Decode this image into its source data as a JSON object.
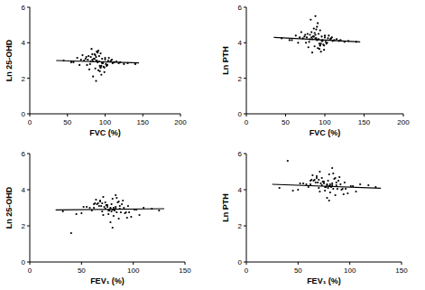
{
  "chart_data": [
    {
      "type": "scatter",
      "x_label": "FVC (%)",
      "y_label": "Ln 25-OHD",
      "xlim": [
        0,
        200
      ],
      "ylim": [
        0,
        6
      ],
      "xticks": [
        0,
        50,
        100,
        150,
        200
      ],
      "yticks": [
        0,
        2,
        4,
        6
      ],
      "series": [
        {
          "type": "scatter",
          "color": "#000000",
          "marker": "circle",
          "x": [
            92,
            85,
            101,
            78,
            95,
            88,
            110,
            70,
            99,
            83,
            90,
            105,
            76,
            94,
            87,
            115,
            81,
            97,
            68,
            102,
            89,
            93,
            120,
            74,
            86,
            98,
            108,
            80,
            91,
            84,
            63,
            96,
            100,
            79,
            112,
            88,
            95,
            72,
            103,
            90,
            58,
            125,
            86,
            94,
            82,
            107,
            77,
            99,
            92,
            130,
            66,
            89,
            97,
            84,
            104,
            75,
            93,
            87,
            118,
            81,
            45,
            100,
            91,
            96,
            140,
            55,
            88,
            109,
            83,
            94
          ],
          "values": [
            2.95,
            3.1,
            2.8,
            3.25,
            2.7,
            3.0,
            2.85,
            3.3,
            2.6,
            3.05,
            2.9,
            3.15,
            2.75,
            3.4,
            2.55,
            2.95,
            3.2,
            2.85,
            3.05,
            2.7,
            3.0,
            2.4,
            2.9,
            3.1,
            3.35,
            2.65,
            3.0,
            2.8,
            3.55,
            2.95,
            3.15,
            2.85,
            3.05,
            2.5,
            2.9,
            3.2,
            2.2,
            3.0,
            2.75,
            3.45,
            2.9,
            2.8,
            3.1,
            2.6,
            3.65,
            2.95,
            3.05,
            2.35,
            3.25,
            2.85,
            2.75,
            3.5,
            2.9,
            2.1,
            3.0,
            3.2,
            2.7,
            3.3,
            2.85,
            2.95,
            3.0,
            3.15,
            2.45,
            3.1,
            2.8,
            2.9,
            1.85,
            3.05,
            3.35,
            2.6
          ]
        },
        {
          "type": "line",
          "color": "#000000",
          "line_style": "solid",
          "x": [
            35,
            145
          ],
          "values": [
            3.0,
            2.87
          ]
        }
      ]
    },
    {
      "type": "scatter",
      "x_label": "FVC (%)",
      "y_label": "Ln PTH",
      "xlim": [
        0,
        200
      ],
      "ylim": [
        0,
        6
      ],
      "xticks": [
        0,
        50,
        100,
        150,
        200
      ],
      "yticks": [
        0,
        2,
        4,
        6
      ],
      "series": [
        {
          "type": "scatter",
          "color": "#000000",
          "marker": "circle",
          "x": [
            92,
            85,
            101,
            78,
            95,
            88,
            110,
            70,
            99,
            83,
            90,
            105,
            76,
            94,
            87,
            115,
            81,
            97,
            68,
            102,
            89,
            93,
            120,
            74,
            86,
            98,
            108,
            80,
            91,
            84,
            63,
            96,
            100,
            79,
            112,
            88,
            95,
            72,
            103,
            90,
            58,
            125,
            86,
            94,
            82,
            107,
            77,
            99,
            92,
            130,
            66,
            89,
            97,
            84,
            104,
            75,
            93,
            87,
            118,
            81,
            45,
            100,
            91,
            96,
            140,
            55,
            88,
            109,
            83,
            94
          ],
          "values": [
            4.2,
            4.35,
            4.05,
            4.5,
            3.95,
            4.25,
            4.1,
            4.6,
            3.85,
            4.3,
            4.15,
            4.4,
            4.0,
            4.7,
            3.8,
            4.2,
            4.45,
            4.1,
            4.3,
            3.95,
            4.25,
            3.65,
            4.15,
            4.35,
            4.8,
            3.9,
            4.25,
            4.05,
            5.1,
            4.2,
            4.4,
            4.1,
            4.3,
            3.75,
            4.15,
            4.45,
            3.5,
            4.25,
            4.0,
            4.9,
            4.15,
            4.05,
            4.35,
            3.85,
            5.3,
            4.2,
            4.3,
            3.6,
            4.5,
            4.1,
            4.0,
            4.75,
            4.15,
            3.45,
            4.25,
            4.45,
            3.95,
            4.55,
            4.1,
            4.2,
            4.25,
            4.4,
            3.7,
            4.35,
            4.05,
            4.15,
            5.5,
            4.3,
            4.6,
            3.85
          ]
        },
        {
          "type": "line",
          "color": "#000000",
          "line_style": "solid",
          "x": [
            35,
            145
          ],
          "values": [
            4.3,
            4.05
          ]
        }
      ]
    },
    {
      "type": "scatter",
      "x_label": "FEV₁ (%)",
      "y_label": "Ln 25-OHD",
      "xlim": [
        0,
        150
      ],
      "ylim": [
        0,
        6
      ],
      "xticks": [
        0,
        50,
        100,
        150
      ],
      "yticks": [
        0,
        2,
        4,
        6
      ],
      "series": [
        {
          "type": "scatter",
          "color": "#000000",
          "marker": "circle",
          "x": [
            80,
            72,
            88,
            65,
            83,
            76,
            95,
            60,
            86,
            70,
            78,
            92,
            63,
            81,
            74,
            101,
            68,
            84,
            55,
            89,
            77,
            80,
            106,
            62,
            73,
            85,
            94,
            67,
            79,
            71,
            50,
            83,
            87,
            66,
            98,
            75,
            82,
            58,
            90,
            78,
            45,
            110,
            73,
            81,
            69,
            93,
            64,
            86,
            79,
            118,
            52,
            76,
            84,
            71,
            91,
            62,
            80,
            74,
            103,
            68,
            32,
            87,
            78,
            83,
            125,
            40,
            75,
            96,
            70,
            81
          ],
          "values": [
            2.9,
            3.05,
            2.75,
            3.2,
            2.95,
            2.65,
            3.1,
            2.85,
            3.35,
            2.8,
            3.0,
            2.7,
            3.25,
            2.55,
            3.15,
            2.9,
            3.4,
            2.75,
            3.05,
            3.2,
            2.85,
            3.5,
            2.6,
            3.0,
            2.95,
            3.3,
            2.45,
            3.1,
            2.8,
            3.6,
            2.7,
            3.05,
            2.95,
            3.25,
            2.5,
            3.15,
            2.85,
            3.0,
            3.4,
            2.2,
            2.65,
            3.0,
            3.3,
            2.9,
            3.1,
            2.75,
            3.45,
            2.4,
            3.2,
            2.95,
            3.05,
            2.85,
            3.55,
            2.6,
            3.0,
            3.2,
            1.9,
            3.15,
            2.9,
            3.35,
            2.8,
            3.1,
            2.95,
            3.7,
            2.85,
            1.6,
            3.05,
            2.75,
            3.25,
            3.0
          ]
        },
        {
          "type": "line",
          "color": "#000000",
          "line_style": "solid",
          "x": [
            25,
            130
          ],
          "values": [
            2.88,
            2.95
          ]
        }
      ]
    },
    {
      "type": "scatter",
      "x_label": "FEV₁ (%)",
      "y_label": "Ln PTH",
      "xlim": [
        0,
        150
      ],
      "ylim": [
        0,
        6
      ],
      "xticks": [
        0,
        50,
        100,
        150
      ],
      "yticks": [
        0,
        2,
        4,
        6
      ],
      "series": [
        {
          "type": "scatter",
          "color": "#000000",
          "marker": "circle",
          "x": [
            80,
            72,
            88,
            65,
            83,
            76,
            95,
            60,
            86,
            70,
            78,
            92,
            63,
            81,
            74,
            101,
            68,
            84,
            55,
            89,
            77,
            80,
            106,
            62,
            73,
            85,
            94,
            67,
            79,
            71,
            50,
            83,
            87,
            66,
            98,
            75,
            82,
            58,
            90,
            78,
            45,
            110,
            73,
            81,
            69,
            93,
            64,
            86,
            79,
            118,
            52,
            76,
            84,
            71,
            91,
            62,
            80,
            74,
            103,
            68,
            32,
            87,
            78,
            83,
            125,
            40,
            75,
            96,
            70,
            81
          ],
          "values": [
            4.2,
            4.35,
            4.05,
            4.5,
            4.25,
            3.95,
            4.4,
            4.15,
            4.65,
            4.1,
            4.3,
            4.0,
            4.55,
            3.85,
            4.45,
            4.2,
            4.75,
            4.05,
            4.35,
            4.5,
            4.15,
            4.85,
            3.9,
            4.3,
            4.25,
            4.6,
            3.75,
            4.4,
            4.1,
            5.0,
            4.0,
            4.35,
            4.25,
            4.55,
            3.8,
            4.45,
            4.15,
            4.3,
            4.7,
            3.55,
            3.95,
            4.3,
            4.65,
            4.2,
            4.4,
            4.05,
            4.8,
            3.7,
            4.5,
            4.25,
            4.35,
            4.15,
            4.9,
            3.9,
            4.3,
            4.5,
            3.4,
            4.45,
            4.2,
            4.65,
            4.1,
            4.4,
            4.25,
            5.2,
            4.15,
            5.6,
            4.35,
            4.05,
            4.55,
            4.3
          ]
        },
        {
          "type": "line",
          "color": "#000000",
          "line_style": "solid",
          "x": [
            25,
            130
          ],
          "values": [
            4.3,
            4.08
          ]
        }
      ]
    }
  ]
}
